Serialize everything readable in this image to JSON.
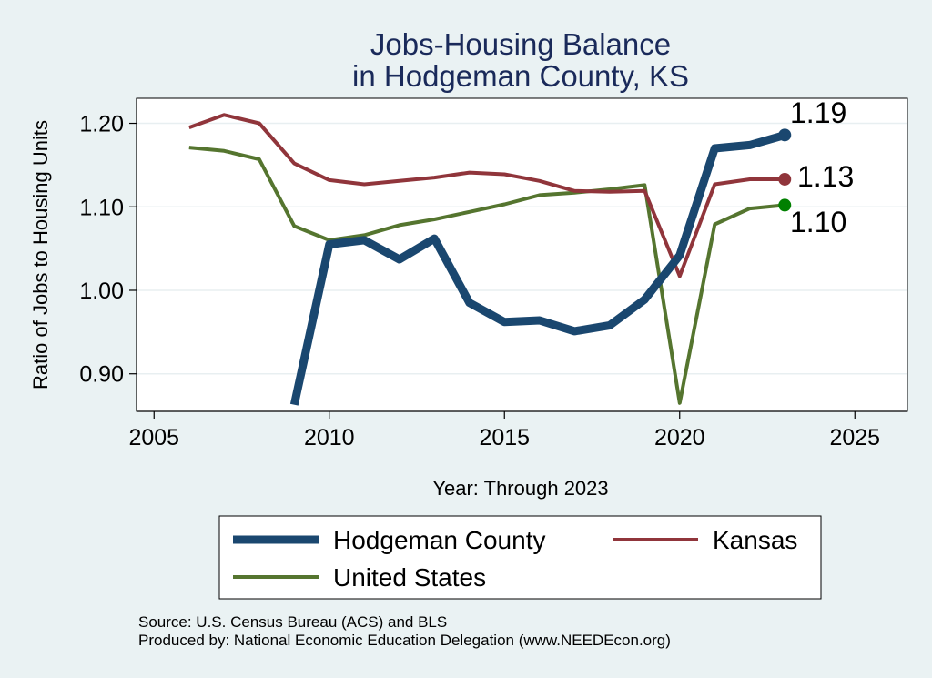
{
  "chart_data": {
    "type": "line",
    "title": [
      "Jobs-Housing Balance",
      "in Hodgeman County, KS"
    ],
    "xlabel": "Year: Through 2023",
    "ylabel": "Ratio of Jobs to Housing Units",
    "xlim": [
      2004.5,
      2026.5
    ],
    "ylim": [
      0.855,
      1.23
    ],
    "xticks": [
      2005,
      2010,
      2015,
      2020,
      2025
    ],
    "xtick_labels": [
      "2005",
      "2010",
      "2015",
      "2020",
      "2025"
    ],
    "yticks": [
      0.9,
      1.0,
      1.1,
      1.2
    ],
    "ytick_labels": [
      "0.90",
      "1.00",
      "1.10",
      "1.20"
    ],
    "grid": true,
    "series": [
      {
        "name": "Hodgeman County",
        "color": "#1a476f",
        "x": [
          2009,
          2010,
          2011,
          2012,
          2013,
          2014,
          2015,
          2016,
          2017,
          2018,
          2019,
          2020,
          2021,
          2022,
          2023
        ],
        "values": [
          0.863,
          1.055,
          1.06,
          1.037,
          1.062,
          0.985,
          0.962,
          0.964,
          0.951,
          0.958,
          0.989,
          1.042,
          1.17,
          1.174,
          1.186
        ],
        "end_label": "1.19"
      },
      {
        "name": "Kansas",
        "color": "#90353b",
        "x": [
          2006,
          2007,
          2008,
          2009,
          2010,
          2011,
          2012,
          2013,
          2014,
          2015,
          2016,
          2017,
          2018,
          2019,
          2020,
          2021,
          2022,
          2023
        ],
        "values": [
          1.195,
          1.21,
          1.2,
          1.152,
          1.132,
          1.127,
          1.131,
          1.135,
          1.141,
          1.139,
          1.131,
          1.119,
          1.118,
          1.119,
          1.017,
          1.127,
          1.133,
          1.133
        ],
        "end_label": "1.13"
      },
      {
        "name": "United States",
        "color": "#55752f",
        "x": [
          2006,
          2007,
          2008,
          2009,
          2010,
          2011,
          2012,
          2013,
          2014,
          2015,
          2016,
          2017,
          2018,
          2019,
          2020,
          2021,
          2022,
          2023
        ],
        "values": [
          1.171,
          1.167,
          1.157,
          1.077,
          1.06,
          1.066,
          1.078,
          1.085,
          1.094,
          1.103,
          1.114,
          1.117,
          1.121,
          1.126,
          0.865,
          1.079,
          1.098,
          1.102
        ],
        "end_label": "1.10",
        "end_marker_color": "#008000"
      }
    ],
    "legend": {
      "position": "bottom",
      "entries": [
        "Hodgeman County",
        "Kansas",
        "United States"
      ]
    }
  },
  "source": "Source: U.S. Census Bureau (ACS) and BLS",
  "produced_by": "Produced by: National Economic Education Delegation (www.NEEDEcon.org)"
}
